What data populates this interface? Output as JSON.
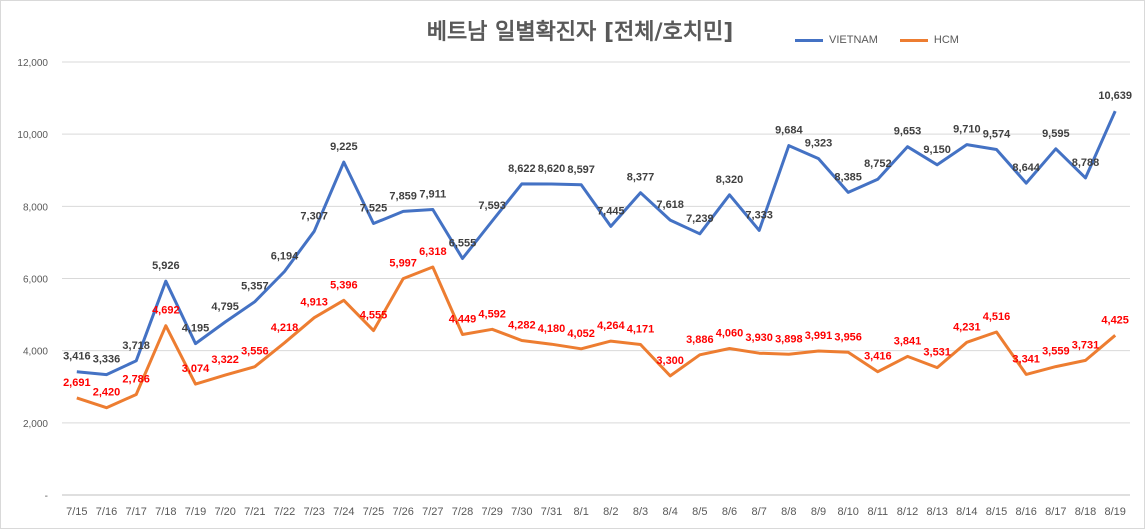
{
  "chart_data": {
    "type": "line",
    "title": "베트남  일별확진자 [전체/호치민]",
    "xlabel": "",
    "ylabel": "",
    "ylim": [
      0,
      12000
    ],
    "yticks": [
      "-",
      "2,000",
      "4,000",
      "6,000",
      "8,000",
      "10,000",
      "12,000"
    ],
    "categories": [
      "7/15",
      "7/16",
      "7/17",
      "7/18",
      "7/19",
      "7/20",
      "7/21",
      "7/22",
      "7/23",
      "7/24",
      "7/25",
      "7/26",
      "7/27",
      "7/28",
      "7/29",
      "7/30",
      "7/31",
      "8/1",
      "8/2",
      "8/3",
      "8/4",
      "8/5",
      "8/6",
      "8/7",
      "8/8",
      "8/9",
      "8/10",
      "8/11",
      "8/12",
      "8/13",
      "8/14",
      "8/15",
      "8/16",
      "8/17",
      "8/18",
      "8/19"
    ],
    "series": [
      {
        "name": "VIETNAM",
        "color": "#4472c4",
        "label_color": "#404040",
        "values": [
          3416,
          3336,
          3718,
          5926,
          4195,
          4795,
          5357,
          6194,
          7307,
          9225,
          7525,
          7859,
          7911,
          6555,
          7593,
          8622,
          8620,
          8597,
          7445,
          8377,
          7618,
          7239,
          8320,
          7333,
          9684,
          9323,
          8385,
          8752,
          9653,
          9150,
          9710,
          9574,
          8644,
          9595,
          8788,
          10639
        ],
        "labels": [
          "3,416",
          "3,336",
          "3,718",
          "5,926",
          "4,195",
          "4,795",
          "5,357",
          "6,194",
          "7,307",
          "9,225",
          "7,525",
          "7,859",
          "7,911",
          "6,555",
          "7,593",
          "8,622",
          "8,620",
          "8,597",
          "7,445",
          "8,377",
          "7,618",
          "7,239",
          "8,320",
          "7,333",
          "9,684",
          "9,323",
          "8,385",
          "8,752",
          "9,653",
          "9,150",
          "9,710",
          "9,574",
          "8,644",
          "9,595",
          "8,788",
          "10,639"
        ]
      },
      {
        "name": "HCM",
        "color": "#ed7d31",
        "label_color": "#ff0000",
        "values": [
          2691,
          2420,
          2786,
          4692,
          3074,
          3322,
          3556,
          4218,
          4913,
          5396,
          4555,
          5997,
          6318,
          4449,
          4592,
          4282,
          4180,
          4052,
          4264,
          4171,
          3300,
          3886,
          4060,
          3930,
          3898,
          3991,
          3956,
          3416,
          3841,
          3531,
          4231,
          4516,
          3341,
          3559,
          3731,
          4425
        ],
        "labels": [
          "2,691",
          "2,420",
          "2,786",
          "4,692",
          "3,074",
          "3,322",
          "3,556",
          "4,218",
          "4,913",
          "5,396",
          "4,555",
          "5,997",
          "6,318",
          "4,449",
          "4,592",
          "4,282",
          "4,180",
          "4,052",
          "4,264",
          "4,171",
          "3,300",
          "3,886",
          "4,060",
          "3,930",
          "3,898",
          "3,991",
          "3,956",
          "3,416",
          "3,841",
          "3,531",
          "4,231",
          "4,516",
          "3,341",
          "3,559",
          "3,731",
          "4,425"
        ]
      }
    ],
    "legend": "top-right",
    "grid": true
  }
}
